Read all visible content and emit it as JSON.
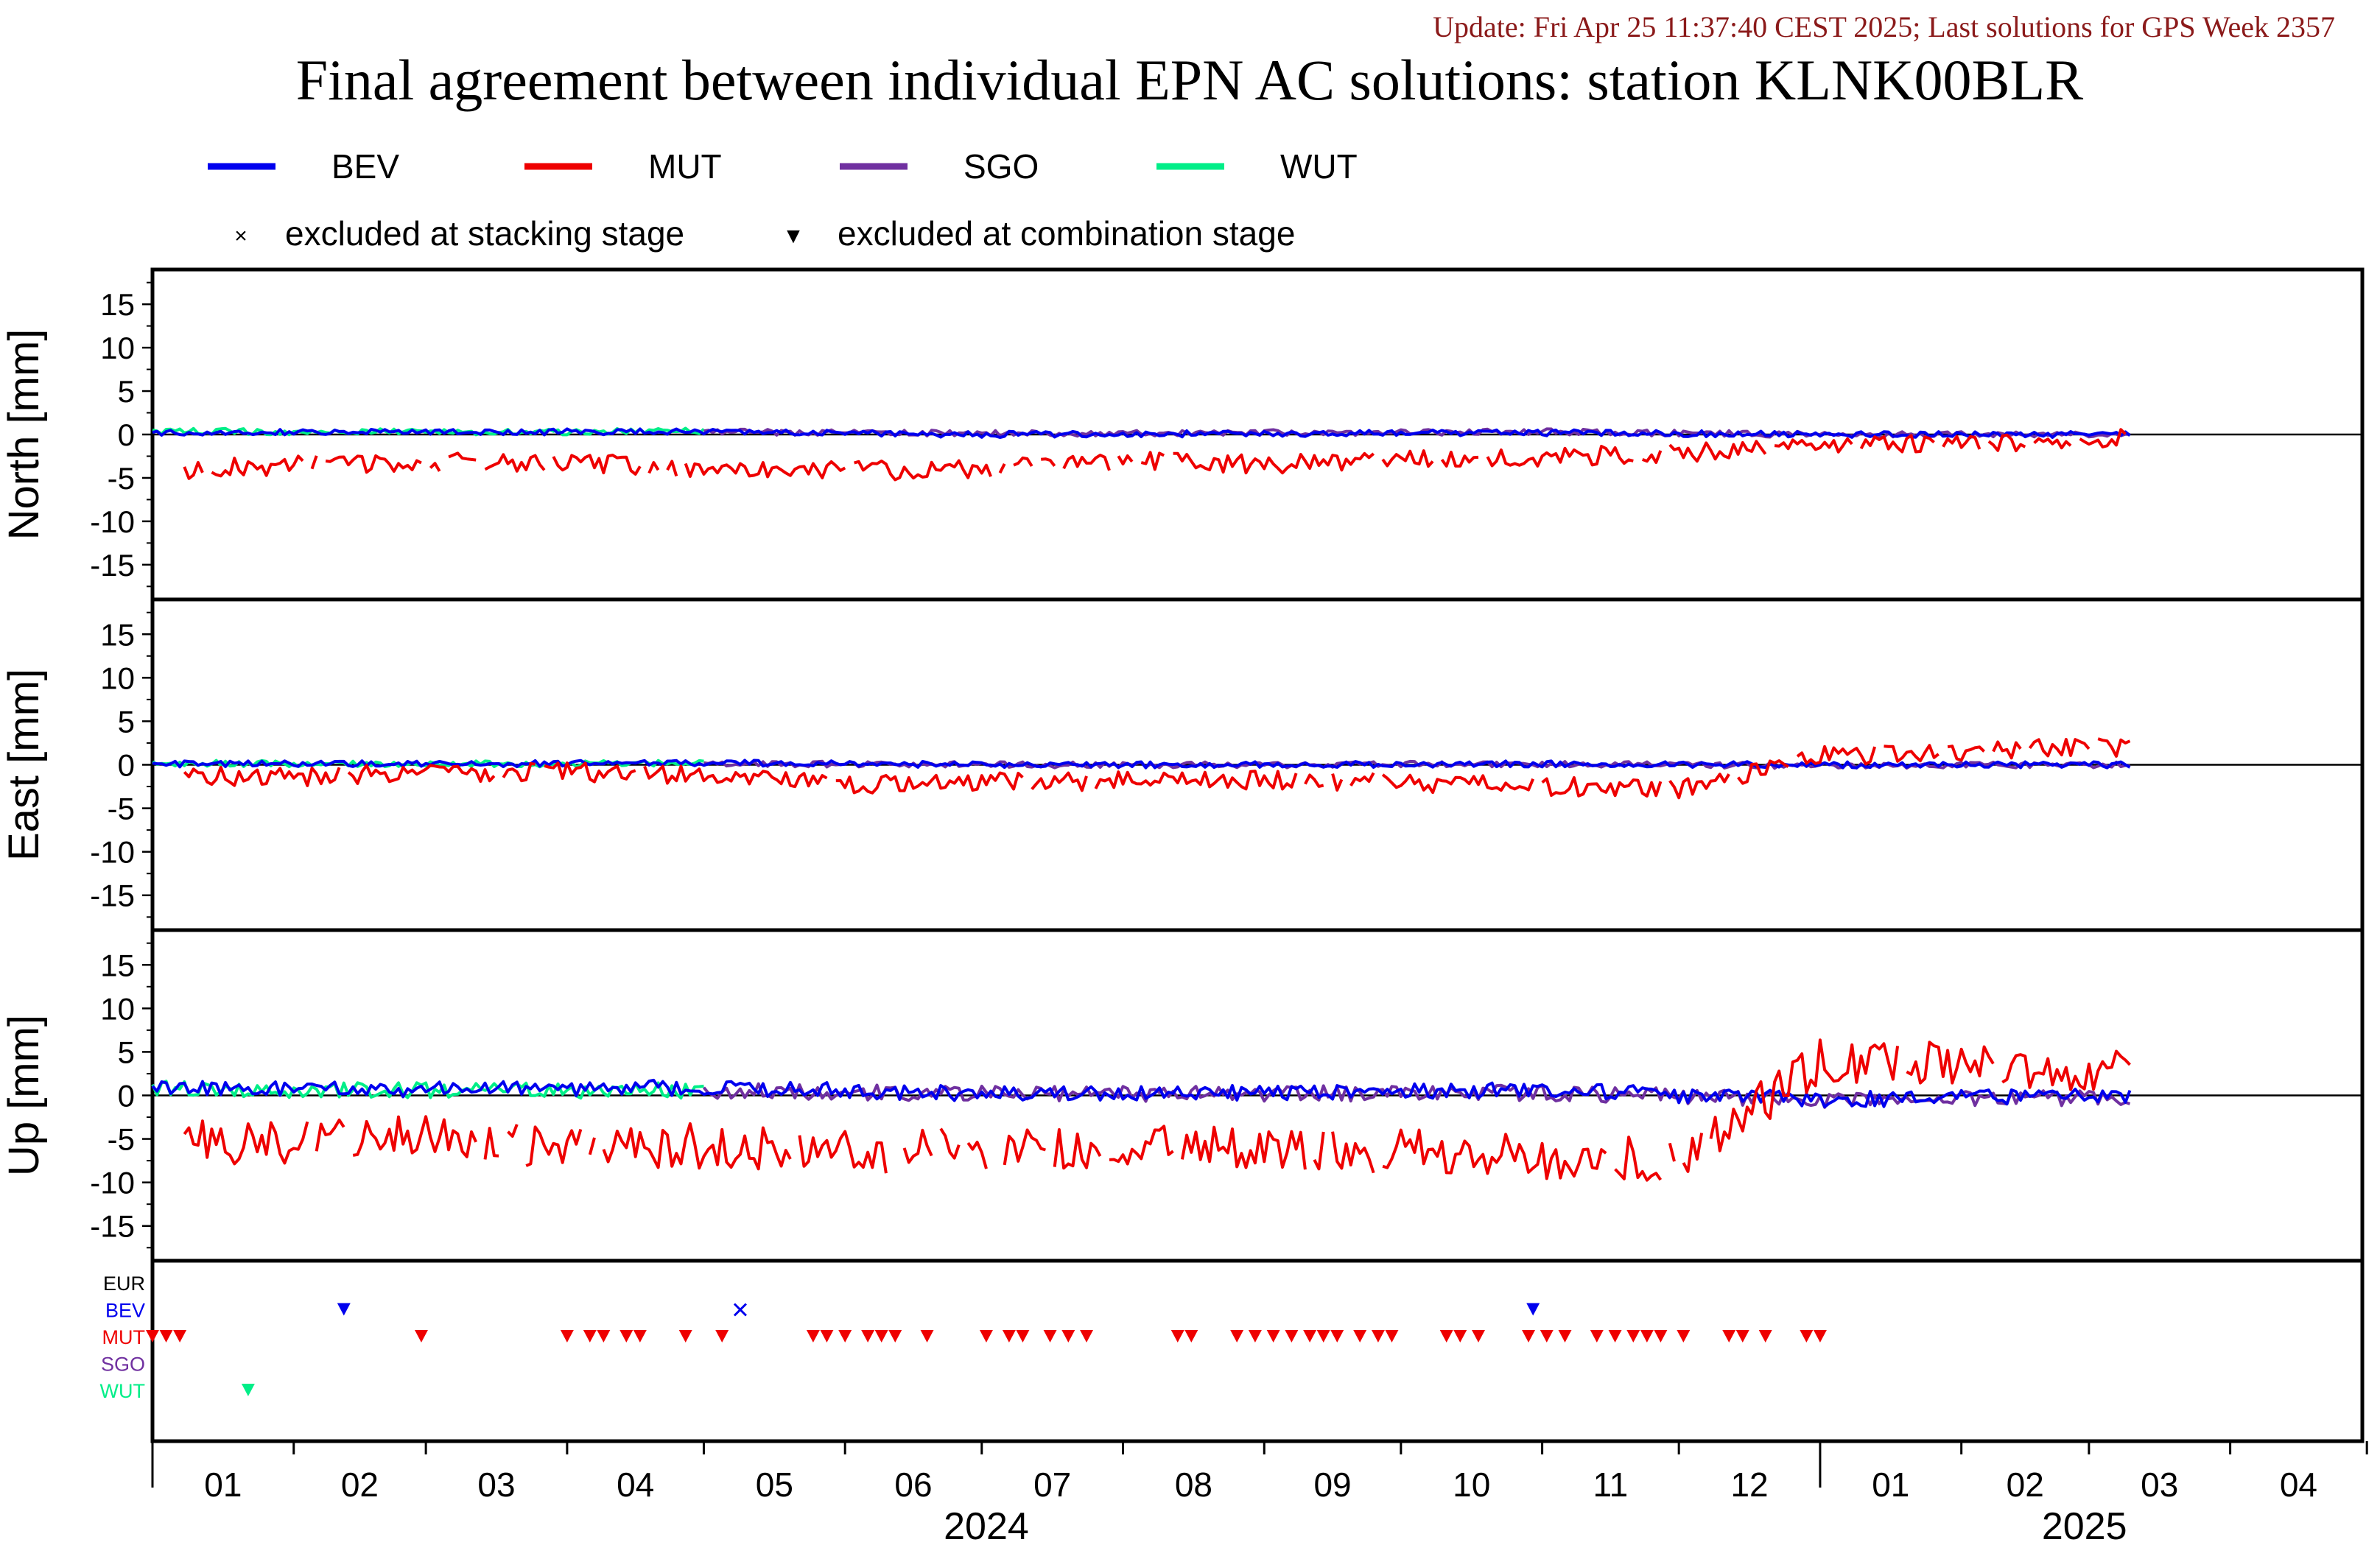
{
  "header": {
    "update_text": "Update: Fri Apr 25 11:37:40 CEST 2025; Last solutions for GPS Week 2357",
    "title": "Final agreement between individual EPN AC solutions: station KLNK00BLR"
  },
  "colors": {
    "BEV": "#0000ee",
    "MUT": "#ee0000",
    "SGO": "#7030a0",
    "WUT": "#00ee88",
    "EUR": "#000000",
    "update_text": "#8b1a1a"
  },
  "legend": {
    "series": [
      "BEV",
      "MUT",
      "SGO",
      "WUT"
    ],
    "markers": [
      {
        "symbol": "×",
        "label": "excluded at stacking stage"
      },
      {
        "symbol": "▼",
        "label": "excluded at combination stage"
      }
    ]
  },
  "chart_data": {
    "type": "line",
    "x_range": [
      "2024-01-01",
      "2025-04-30"
    ],
    "x_tick_months": [
      "01",
      "02",
      "03",
      "04",
      "05",
      "06",
      "07",
      "08",
      "09",
      "10",
      "11",
      "12",
      "01",
      "02",
      "03",
      "04"
    ],
    "x_years": [
      "2024",
      "2025"
    ],
    "panels": [
      {
        "ylabel": "North [mm]",
        "ylim": [
          -19,
          19
        ],
        "yticks": [
          15,
          10,
          5,
          0,
          -5,
          -10,
          -15
        ],
        "series": [
          {
            "name": "BEV",
            "x": [
              "2024-01-01",
              "2024-03-01",
              "2024-05-01",
              "2024-07-01",
              "2024-09-01",
              "2024-11-01",
              "2025-01-01",
              "2025-03-01"
            ],
            "y": [
              0.2,
              0.3,
              0.3,
              0.0,
              0.1,
              0.2,
              0.0,
              0.0
            ]
          },
          {
            "name": "MUT",
            "x": [
              "2024-01-08",
              "2024-02-01",
              "2024-03-01",
              "2024-04-01",
              "2024-05-01",
              "2024-06-01",
              "2024-07-01",
              "2024-08-01",
              "2024-09-01",
              "2024-10-01",
              "2024-11-01",
              "2024-12-01",
              "2025-01-01",
              "2025-02-01",
              "2025-03-01"
            ],
            "y": [
              -4.0,
              -3.6,
              -3.2,
              -3.3,
              -3.8,
              -4.2,
              -4.0,
              -3.0,
              -3.5,
              -3.0,
              -2.6,
              -2.2,
              -1.3,
              -1.0,
              -0.5
            ]
          },
          {
            "name": "SGO",
            "x": [
              "2024-05-01",
              "2024-07-01",
              "2024-09-01",
              "2024-11-01",
              "2025-01-01",
              "2025-03-01"
            ],
            "y": [
              0.3,
              0.1,
              0.2,
              0.3,
              0.0,
              0.0
            ]
          },
          {
            "name": "WUT",
            "x": [
              "2024-01-01",
              "2024-02-01",
              "2024-03-01",
              "2024-04-01",
              "2024-05-01"
            ],
            "y": [
              0.4,
              0.3,
              0.3,
              0.3,
              0.4
            ]
          }
        ]
      },
      {
        "ylabel": "East [mm]",
        "ylim": [
          -19,
          19
        ],
        "yticks": [
          15,
          10,
          5,
          0,
          -5,
          -10,
          -15
        ],
        "series": [
          {
            "name": "BEV",
            "x": [
              "2024-01-01",
              "2024-03-01",
              "2024-05-01",
              "2024-07-01",
              "2024-09-01",
              "2024-11-01",
              "2025-01-01",
              "2025-03-01"
            ],
            "y": [
              0.1,
              0.1,
              0.2,
              0.0,
              0.0,
              0.1,
              0.0,
              0.0
            ]
          },
          {
            "name": "MUT",
            "x": [
              "2024-01-08",
              "2024-02-01",
              "2024-03-01",
              "2024-04-01",
              "2024-05-01",
              "2024-06-01",
              "2024-07-01",
              "2024-08-01",
              "2024-09-01",
              "2024-10-01",
              "2024-11-01",
              "2024-12-01",
              "2025-01-01",
              "2025-02-01",
              "2025-03-01"
            ],
            "y": [
              -1.2,
              -1.4,
              -0.9,
              -0.8,
              -1.2,
              -2.2,
              -2.0,
              -1.9,
              -1.8,
              -2.0,
              -2.4,
              -2.8,
              1.0,
              1.5,
              2.0
            ]
          },
          {
            "name": "SGO",
            "x": [
              "2024-05-01",
              "2024-07-01",
              "2024-09-01",
              "2024-11-01",
              "2025-01-01",
              "2025-03-01"
            ],
            "y": [
              0.1,
              0.0,
              0.0,
              0.1,
              -0.1,
              0.0
            ]
          },
          {
            "name": "WUT",
            "x": [
              "2024-01-01",
              "2024-02-01",
              "2024-03-01",
              "2024-04-01",
              "2024-05-01"
            ],
            "y": [
              0.2,
              0.1,
              0.1,
              0.1,
              0.2
            ]
          }
        ]
      },
      {
        "ylabel": "Up [mm]",
        "ylim": [
          -19,
          19
        ],
        "yticks": [
          15,
          10,
          5,
          0,
          -5,
          -10,
          -15
        ],
        "series": [
          {
            "name": "BEV",
            "x": [
              "2024-01-01",
              "2024-03-01",
              "2024-05-01",
              "2024-07-01",
              "2024-09-01",
              "2024-11-01",
              "2025-01-01",
              "2025-03-01"
            ],
            "y": [
              0.8,
              0.7,
              0.9,
              0.2,
              0.3,
              0.6,
              -0.5,
              0.0
            ]
          },
          {
            "name": "MUT",
            "x": [
              "2024-01-08",
              "2024-02-01",
              "2024-03-01",
              "2024-04-01",
              "2024-05-01",
              "2024-06-01",
              "2024-07-01",
              "2024-08-01",
              "2024-09-01",
              "2024-10-01",
              "2024-11-01",
              "2024-12-01",
              "2025-01-01",
              "2025-02-01",
              "2025-03-01"
            ],
            "y": [
              -5.5,
              -5.2,
              -5.0,
              -6.0,
              -5.8,
              -6.5,
              -6.0,
              -6.2,
              -6.0,
              -6.5,
              -7.0,
              -7.5,
              4.0,
              3.5,
              3.0
            ]
          },
          {
            "name": "SGO",
            "x": [
              "2024-05-01",
              "2024-07-01",
              "2024-09-01",
              "2024-11-01",
              "2025-01-01",
              "2025-03-01"
            ],
            "y": [
              0.5,
              0.2,
              0.2,
              0.3,
              -0.5,
              -0.3
            ]
          },
          {
            "name": "WUT",
            "x": [
              "2024-01-01",
              "2024-02-01",
              "2024-03-01",
              "2024-04-01",
              "2024-05-01"
            ],
            "y": [
              0.8,
              0.6,
              0.6,
              0.5,
              0.6
            ]
          }
        ]
      }
    ],
    "exclusions": {
      "rows": [
        "EUR",
        "BEV",
        "MUT",
        "SGO",
        "WUT"
      ],
      "stacking": [
        {
          "ac": "BEV",
          "date": "2024-05-09"
        }
      ],
      "combination": [
        {
          "ac": "BEV",
          "date": "2024-02-12"
        },
        {
          "ac": "BEV",
          "date": "2024-10-30"
        },
        {
          "ac": "WUT",
          "date": "2024-01-22"
        },
        {
          "ac": "MUT",
          "dates": [
            "2024-01-01",
            "2024-01-04",
            "2024-01-07",
            "2024-02-29",
            "2024-04-01",
            "2024-04-06",
            "2024-04-09",
            "2024-04-14",
            "2024-04-17",
            "2024-04-27",
            "2024-05-05",
            "2024-05-25",
            "2024-05-28",
            "2024-06-01",
            "2024-06-06",
            "2024-06-09",
            "2024-06-12",
            "2024-06-19",
            "2024-07-02",
            "2024-07-07",
            "2024-07-10",
            "2024-07-16",
            "2024-07-20",
            "2024-07-24",
            "2024-08-13",
            "2024-08-16",
            "2024-08-26",
            "2024-08-30",
            "2024-09-03",
            "2024-09-07",
            "2024-09-11",
            "2024-09-14",
            "2024-09-17",
            "2024-09-22",
            "2024-09-26",
            "2024-09-29",
            "2024-10-11",
            "2024-10-14",
            "2024-10-18",
            "2024-10-29",
            "2024-11-02",
            "2024-11-06",
            "2024-11-13",
            "2024-11-17",
            "2024-11-21",
            "2024-11-24",
            "2024-11-27",
            "2024-12-02",
            "2024-12-12",
            "2024-12-15",
            "2024-12-20",
            "2024-12-29",
            "2025-01-01"
          ]
        }
      ]
    }
  }
}
